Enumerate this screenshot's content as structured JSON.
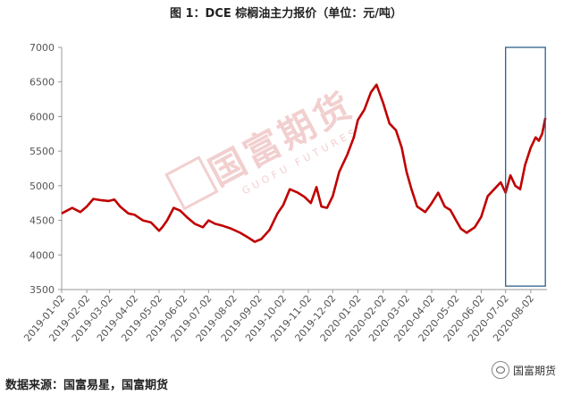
{
  "title": "图 1：DCE 棕榈油主力报价（单位：元/吨）",
  "source": "数据来源：国富易星，国富期货",
  "brand": "国富期货",
  "watermark": {
    "cn": "国富期货",
    "en": "GUOFU FUTURES"
  },
  "chart_data": {
    "type": "line",
    "title": "图 1：DCE 棕榈油主力报价（单位：元/吨）",
    "xlabel": "",
    "ylabel": "",
    "ylim": [
      3500,
      7000
    ],
    "yticks": [
      3500,
      4000,
      4500,
      5000,
      5500,
      6000,
      6500,
      7000
    ],
    "x_ticks": [
      "2019-01-02",
      "2019-02-02",
      "2019-03-02",
      "2019-04-02",
      "2019-05-02",
      "2019-06-02",
      "2019-07-02",
      "2019-08-02",
      "2019-09-02",
      "2019-10-02",
      "2019-11-02",
      "2019-12-02",
      "2020-01-02",
      "2020-02-02",
      "2020-03-02",
      "2020-04-02",
      "2020-05-02",
      "2020-06-02",
      "2020-07-02",
      "2020-08-02"
    ],
    "grid": false,
    "legend": "none",
    "line_color": "#c00000",
    "highlight_box": {
      "x_start": "2020-07-02",
      "x_end": "2020-08-20",
      "y_range": [
        3550,
        7000
      ],
      "color": "#2e5f8a"
    },
    "series": [
      {
        "points": [
          [
            "2019-01-02",
            4600
          ],
          [
            "2019-01-15",
            4680
          ],
          [
            "2019-01-25",
            4620
          ],
          [
            "2019-02-02",
            4700
          ],
          [
            "2019-02-10",
            4810
          ],
          [
            "2019-02-20",
            4790
          ],
          [
            "2019-03-01",
            4780
          ],
          [
            "2019-03-08",
            4800
          ],
          [
            "2019-03-15",
            4700
          ],
          [
            "2019-03-25",
            4600
          ],
          [
            "2019-04-02",
            4580
          ],
          [
            "2019-04-12",
            4500
          ],
          [
            "2019-04-22",
            4470
          ],
          [
            "2019-05-02",
            4350
          ],
          [
            "2019-05-06",
            4400
          ],
          [
            "2019-05-12",
            4500
          ],
          [
            "2019-05-20",
            4680
          ],
          [
            "2019-05-28",
            4640
          ],
          [
            "2019-06-05",
            4550
          ],
          [
            "2019-06-15",
            4450
          ],
          [
            "2019-06-25",
            4400
          ],
          [
            "2019-07-02",
            4500
          ],
          [
            "2019-07-10",
            4450
          ],
          [
            "2019-07-20",
            4420
          ],
          [
            "2019-07-30",
            4380
          ],
          [
            "2019-08-10",
            4320
          ],
          [
            "2019-08-20",
            4250
          ],
          [
            "2019-08-28",
            4190
          ],
          [
            "2019-09-05",
            4230
          ],
          [
            "2019-09-15",
            4360
          ],
          [
            "2019-09-25",
            4600
          ],
          [
            "2019-10-02",
            4720
          ],
          [
            "2019-10-10",
            4950
          ],
          [
            "2019-10-20",
            4900
          ],
          [
            "2019-10-28",
            4840
          ],
          [
            "2019-11-05",
            4750
          ],
          [
            "2019-11-12",
            4980
          ],
          [
            "2019-11-18",
            4700
          ],
          [
            "2019-11-25",
            4680
          ],
          [
            "2019-12-02",
            4850
          ],
          [
            "2019-12-10",
            5200
          ],
          [
            "2019-12-20",
            5450
          ],
          [
            "2019-12-28",
            5700
          ],
          [
            "2020-01-02",
            5950
          ],
          [
            "2020-01-10",
            6100
          ],
          [
            "2020-01-18",
            6350
          ],
          [
            "2020-01-25",
            6460
          ],
          [
            "2020-02-02",
            6200
          ],
          [
            "2020-02-10",
            5900
          ],
          [
            "2020-02-18",
            5800
          ],
          [
            "2020-02-25",
            5550
          ],
          [
            "2020-03-02",
            5200
          ],
          [
            "2020-03-08",
            4950
          ],
          [
            "2020-03-15",
            4700
          ],
          [
            "2020-03-25",
            4620
          ],
          [
            "2020-04-02",
            4750
          ],
          [
            "2020-04-10",
            4900
          ],
          [
            "2020-04-18",
            4700
          ],
          [
            "2020-04-25",
            4650
          ],
          [
            "2020-05-02",
            4500
          ],
          [
            "2020-05-08",
            4380
          ],
          [
            "2020-05-15",
            4320
          ],
          [
            "2020-05-25",
            4400
          ],
          [
            "2020-06-02",
            4550
          ],
          [
            "2020-06-10",
            4850
          ],
          [
            "2020-06-18",
            4950
          ],
          [
            "2020-06-26",
            5050
          ],
          [
            "2020-07-02",
            4900
          ],
          [
            "2020-07-08",
            5150
          ],
          [
            "2020-07-14",
            5000
          ],
          [
            "2020-07-20",
            4950
          ],
          [
            "2020-07-26",
            5300
          ],
          [
            "2020-08-02",
            5550
          ],
          [
            "2020-08-08",
            5700
          ],
          [
            "2020-08-12",
            5650
          ],
          [
            "2020-08-16",
            5750
          ],
          [
            "2020-08-20",
            5980
          ]
        ]
      }
    ]
  }
}
